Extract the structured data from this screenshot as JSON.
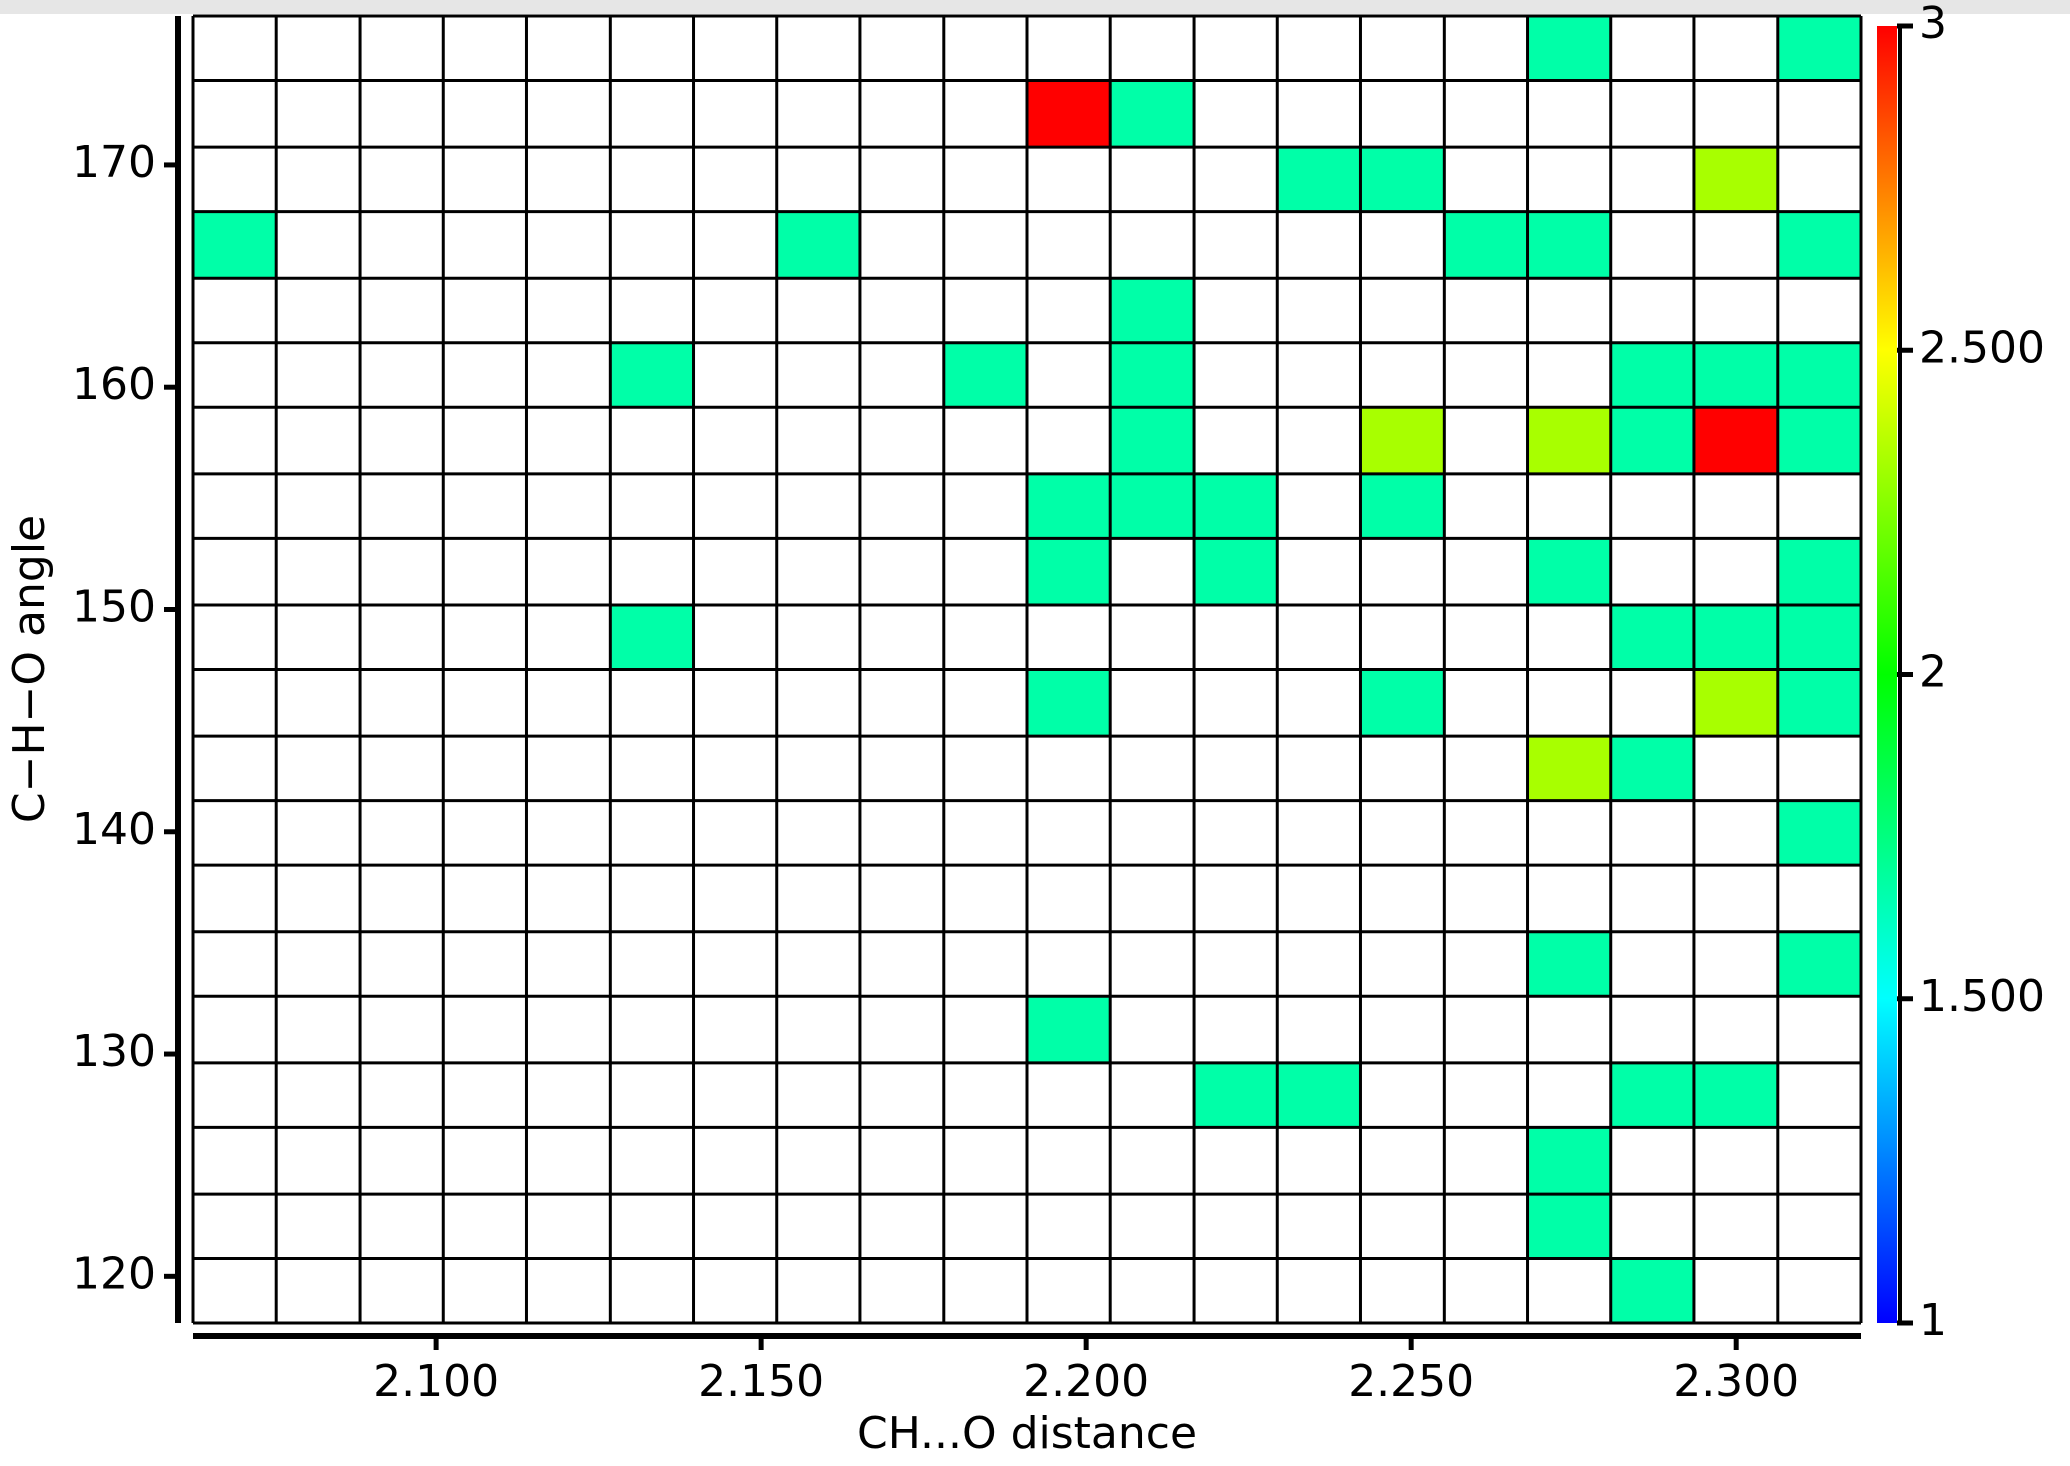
{
  "chart_data": {
    "type": "heatmap",
    "x_label": "CH...O distance",
    "y_label": "C−H−O angle",
    "xbins": [
      2.0626,
      2.0754,
      2.0883,
      2.1011,
      2.1139,
      2.1268,
      2.1396,
      2.1524,
      2.1652,
      2.1781,
      2.1909,
      2.2037,
      2.2166,
      2.2294,
      2.2422,
      2.2551,
      2.2679,
      2.2807,
      2.2935,
      2.3064,
      2.3192
    ],
    "ybins": [
      117.9,
      120.8,
      123.7,
      126.7,
      129.6,
      132.6,
      135.5,
      138.5,
      141.4,
      144.3,
      147.3,
      150.2,
      153.2,
      156.1,
      159.1,
      162.0,
      164.9,
      167.9,
      170.8,
      173.8,
      176.7
    ],
    "xlim": [
      2.0626,
      2.3192
    ],
    "ylim": [
      117.9,
      176.7
    ],
    "xticks": [
      {
        "value": 2.1,
        "label": "2.100"
      },
      {
        "value": 2.15,
        "label": "2.150"
      },
      {
        "value": 2.2,
        "label": "2.200"
      },
      {
        "value": 2.25,
        "label": "2.250"
      },
      {
        "value": 2.3,
        "label": "2.300"
      }
    ],
    "yticks": [
      120,
      130,
      140,
      150,
      160,
      170
    ],
    "values": [
      [
        null,
        null,
        null,
        null,
        null,
        null,
        null,
        null,
        null,
        null,
        null,
        null,
        null,
        null,
        null,
        null,
        null,
        1.67,
        null,
        null
      ],
      [
        null,
        null,
        null,
        null,
        null,
        null,
        null,
        null,
        null,
        null,
        null,
        null,
        null,
        null,
        null,
        null,
        1.67,
        null,
        null,
        null
      ],
      [
        null,
        null,
        null,
        null,
        null,
        null,
        null,
        null,
        null,
        null,
        null,
        null,
        null,
        null,
        null,
        null,
        1.67,
        null,
        null,
        null
      ],
      [
        null,
        null,
        null,
        null,
        null,
        null,
        null,
        null,
        null,
        null,
        null,
        null,
        1.67,
        1.67,
        null,
        null,
        null,
        1.67,
        1.67,
        null
      ],
      [
        null,
        null,
        null,
        null,
        null,
        null,
        null,
        null,
        null,
        null,
        1.67,
        null,
        null,
        null,
        null,
        null,
        null,
        null,
        null,
        null
      ],
      [
        null,
        null,
        null,
        null,
        null,
        null,
        null,
        null,
        null,
        null,
        null,
        null,
        null,
        null,
        null,
        null,
        1.67,
        null,
        null,
        1.67
      ],
      [
        null,
        null,
        null,
        null,
        null,
        null,
        null,
        null,
        null,
        null,
        null,
        null,
        null,
        null,
        null,
        null,
        null,
        null,
        null,
        null
      ],
      [
        null,
        null,
        null,
        null,
        null,
        null,
        null,
        null,
        null,
        null,
        null,
        null,
        null,
        null,
        null,
        null,
        null,
        null,
        null,
        1.67
      ],
      [
        null,
        null,
        null,
        null,
        null,
        null,
        null,
        null,
        null,
        null,
        null,
        null,
        null,
        null,
        null,
        null,
        2.33,
        1.67,
        null,
        null
      ],
      [
        null,
        null,
        null,
        null,
        null,
        null,
        null,
        null,
        null,
        null,
        1.67,
        null,
        null,
        null,
        1.67,
        null,
        null,
        null,
        2.33,
        1.67
      ],
      [
        null,
        null,
        null,
        null,
        null,
        1.67,
        null,
        null,
        null,
        null,
        null,
        null,
        null,
        null,
        null,
        null,
        null,
        1.67,
        1.67,
        1.67
      ],
      [
        null,
        null,
        null,
        null,
        null,
        null,
        null,
        null,
        null,
        null,
        1.67,
        null,
        1.67,
        null,
        null,
        null,
        1.67,
        null,
        null,
        1.67
      ],
      [
        null,
        null,
        null,
        null,
        null,
        null,
        null,
        null,
        null,
        null,
        1.67,
        1.67,
        1.67,
        null,
        1.67,
        null,
        null,
        null,
        null,
        null
      ],
      [
        null,
        null,
        null,
        null,
        null,
        null,
        null,
        null,
        null,
        null,
        null,
        1.67,
        null,
        null,
        2.33,
        null,
        2.33,
        1.67,
        3,
        1.67
      ],
      [
        null,
        null,
        null,
        null,
        null,
        1.67,
        null,
        null,
        null,
        1.67,
        null,
        1.67,
        null,
        null,
        null,
        null,
        null,
        1.67,
        1.67,
        1.67
      ],
      [
        null,
        null,
        null,
        null,
        null,
        null,
        null,
        null,
        null,
        null,
        null,
        1.67,
        null,
        null,
        null,
        null,
        null,
        null,
        null,
        null
      ],
      [
        1.67,
        null,
        null,
        null,
        null,
        null,
        null,
        1.67,
        null,
        null,
        null,
        null,
        null,
        null,
        null,
        1.67,
        1.67,
        null,
        null,
        1.67
      ],
      [
        null,
        null,
        null,
        null,
        null,
        null,
        null,
        null,
        null,
        null,
        null,
        null,
        null,
        1.67,
        1.67,
        null,
        null,
        null,
        2.33,
        null
      ],
      [
        null,
        null,
        null,
        null,
        null,
        null,
        null,
        null,
        null,
        null,
        3,
        1.67,
        null,
        null,
        null,
        null,
        null,
        null,
        null,
        null
      ],
      [
        null,
        null,
        null,
        null,
        null,
        null,
        null,
        null,
        null,
        null,
        null,
        null,
        null,
        null,
        null,
        null,
        1.67,
        null,
        null,
        1.67
      ]
    ],
    "zlim": [
      1,
      3
    ],
    "zticks": [
      1,
      {
        "value": 1.5,
        "label": "1.500"
      },
      2,
      {
        "value": 2.5,
        "label": "2.500"
      },
      3
    ],
    "colormap": [
      "#0000ff",
      "#00ffff",
      "#00ff00",
      "#ffff00",
      "#ff0000"
    ],
    "empty_color": "#ffffff"
  }
}
